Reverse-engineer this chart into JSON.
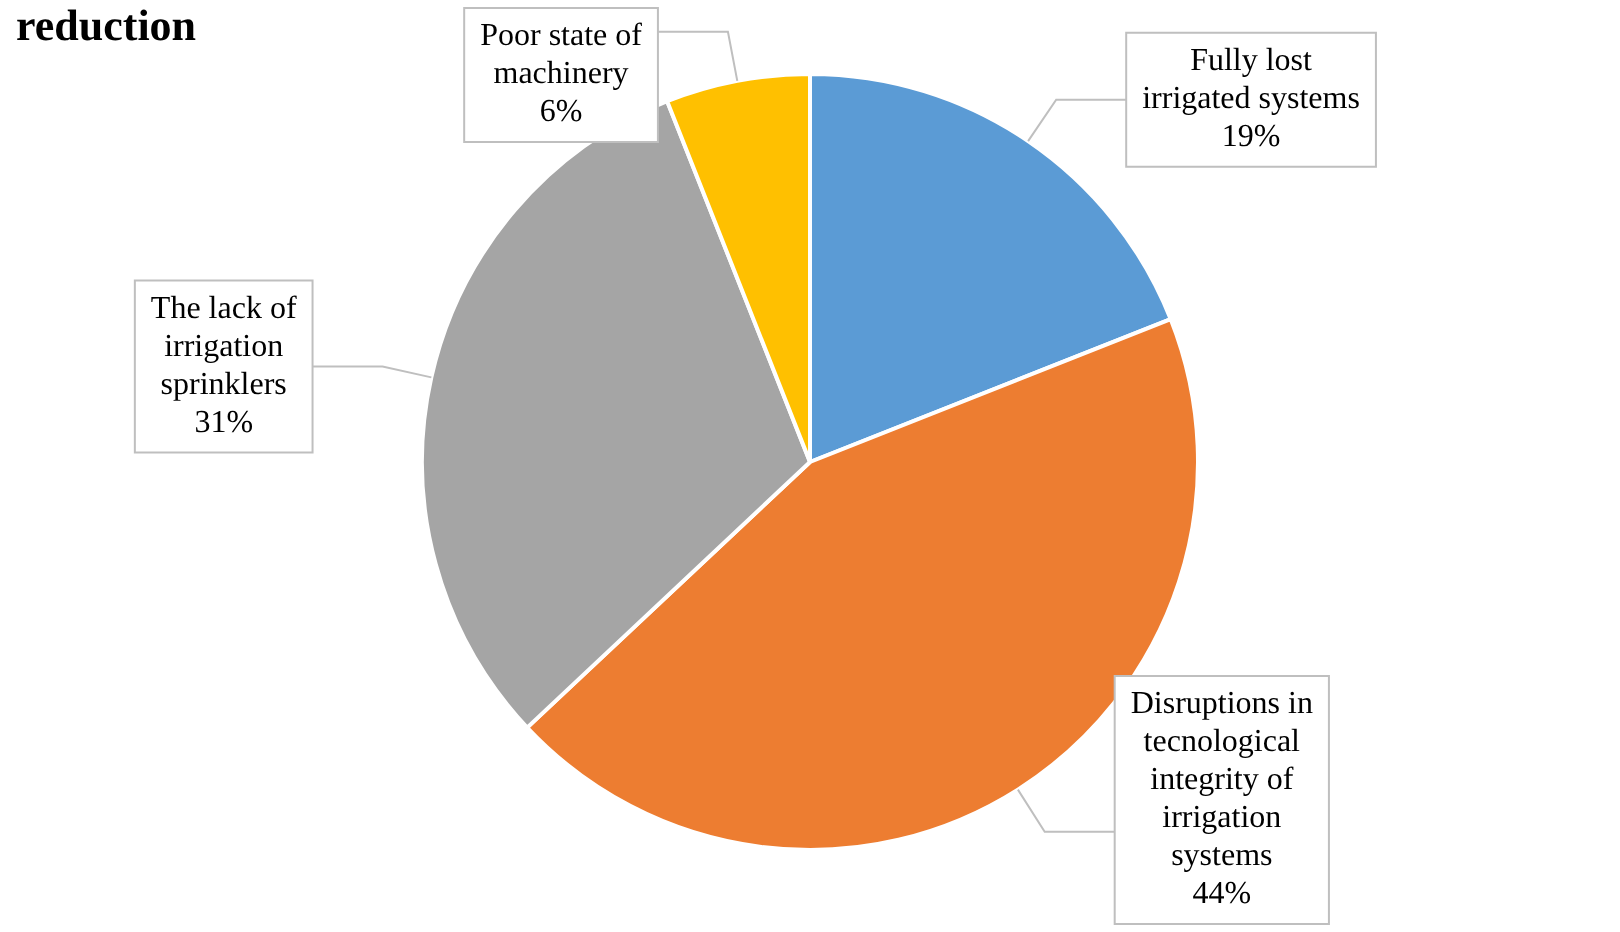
{
  "chart_data": {
    "type": "pie",
    "title": "reduction",
    "categories": [
      "Fully lost irrigated systems",
      "Disruptions in tecnological integrity of irrigation systems",
      "The lack of irrigation sprinklers",
      "Poor state of machinery"
    ],
    "values": [
      19,
      44,
      31,
      6
    ],
    "value_labels": [
      "19%",
      "44%",
      "31%",
      "6%"
    ],
    "colors": [
      "#5b9bd5",
      "#ed7d31",
      "#a5a5a5",
      "#ffc000"
    ],
    "legend": false
  }
}
